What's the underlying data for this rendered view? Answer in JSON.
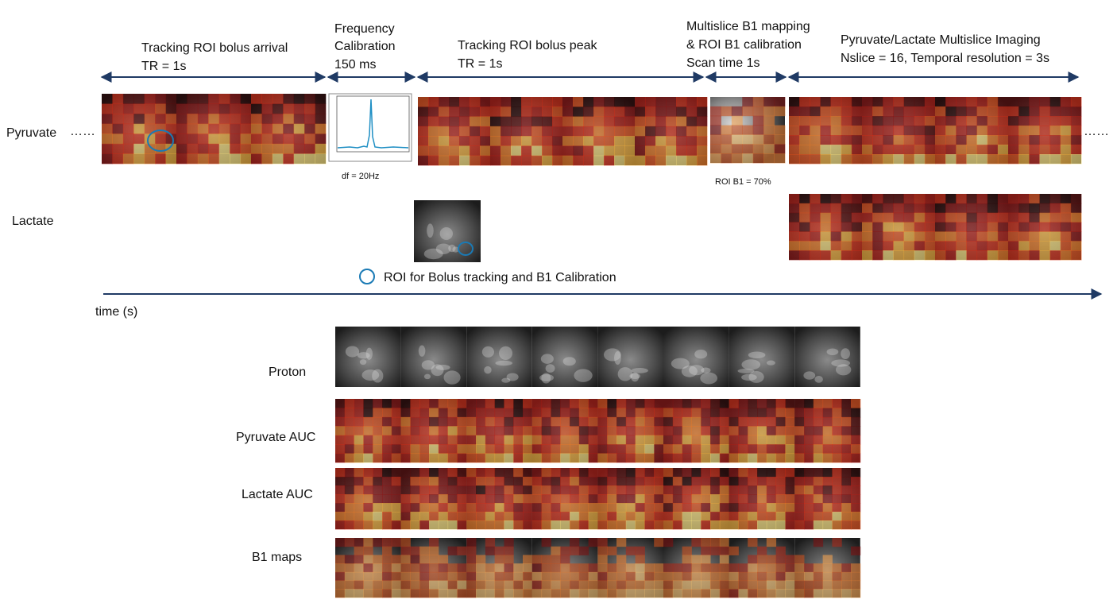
{
  "phases": [
    {
      "lines": [
        "Tracking ROI bolus arrival",
        "TR = 1s"
      ]
    },
    {
      "lines": [
        "Frequency",
        "Calibration",
        "150 ms"
      ]
    },
    {
      "lines": [
        "Tracking ROI bolus peak",
        "TR = 1s"
      ]
    },
    {
      "lines": [
        "Multislice B1 mapping",
        "& ROI B1 calibration",
        "Scan time 1s"
      ]
    },
    {
      "lines": [
        "Pyruvate/Lactate Multislice Imaging",
        "Nslice = 16, Temporal resolution = 3s"
      ]
    }
  ],
  "rows": {
    "pyruvate": "Pyruvate",
    "lactate": "Lactate"
  },
  "annotations": {
    "frequency": "df = 20Hz",
    "roi_b1": "ROI B1 = 70%"
  },
  "legend": "ROI for Bolus tracking and B1 Calibration",
  "time_axis": "time (s)",
  "map_rows": [
    "Proton",
    "Pyruvate AUC",
    "Lactate AUC",
    "B1 maps"
  ]
}
